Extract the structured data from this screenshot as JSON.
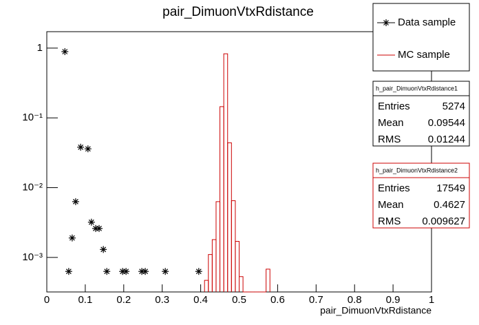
{
  "chart_data": {
    "type": "scatter",
    "title": "pair_DimuonVtxRdistance",
    "x_label": "pair_DimuonVtxRdistance",
    "log_y": true,
    "xlim": [
      0,
      1
    ],
    "ylim": [
      0.00032,
      1.72
    ],
    "xticks": [
      0,
      0.1,
      0.2,
      0.3,
      0.4,
      0.5,
      0.6,
      0.7,
      0.8,
      0.9,
      1
    ],
    "yticks": [
      {
        "value": 0.001,
        "label": "10⁻³"
      },
      {
        "value": 0.01,
        "label": "10⁻²"
      },
      {
        "value": 0.1,
        "label": "10⁻¹"
      },
      1
    ],
    "series": [
      {
        "name": "Data sample",
        "color": "#000000",
        "type": "scatter",
        "x": [
          0.047,
          0.057,
          0.066,
          0.075,
          0.088,
          0.107,
          0.116,
          0.127,
          0.136,
          0.147,
          0.156,
          0.197,
          0.206,
          0.247,
          0.256,
          0.308,
          0.395
        ],
        "values": [
          0.89,
          0.00063,
          0.0019,
          0.0063,
          0.038,
          0.036,
          0.0032,
          0.0026,
          0.0026,
          0.0013,
          0.00063,
          0.00063,
          0.00063,
          0.00063,
          0.00063,
          0.00063,
          0.00063
        ]
      },
      {
        "name": "MC sample",
        "color": "#cc0000",
        "type": "histogram",
        "bins": [
          0.41,
          0.42,
          0.43,
          0.44,
          0.45,
          0.46,
          0.47,
          0.48,
          0.49,
          0.5,
          0.51,
          0.52,
          0.53,
          0.54,
          0.55,
          0.56,
          0.57,
          0.58
        ],
        "values": [
          0.00047,
          0.0011,
          0.0018,
          0.0063,
          0.145,
          0.83,
          0.044,
          0.0065,
          0.0017,
          0.00053,
          0,
          0,
          0,
          0,
          0,
          0,
          0.00068
        ]
      }
    ],
    "stats": [
      {
        "title": "h_pair_DimuonVtxRdistance1",
        "color": "#000000",
        "rows": [
          [
            "Entries",
            "5274"
          ],
          [
            "Mean",
            "0.09544"
          ],
          [
            "RMS",
            "0.01244"
          ]
        ]
      },
      {
        "title": "h_pair_DimuonVtxRdistance2",
        "color": "#cc0000",
        "rows": [
          [
            "Entries",
            "17549"
          ],
          [
            "Mean",
            "0.4627"
          ],
          [
            "RMS",
            "0.009627"
          ]
        ]
      }
    ]
  }
}
